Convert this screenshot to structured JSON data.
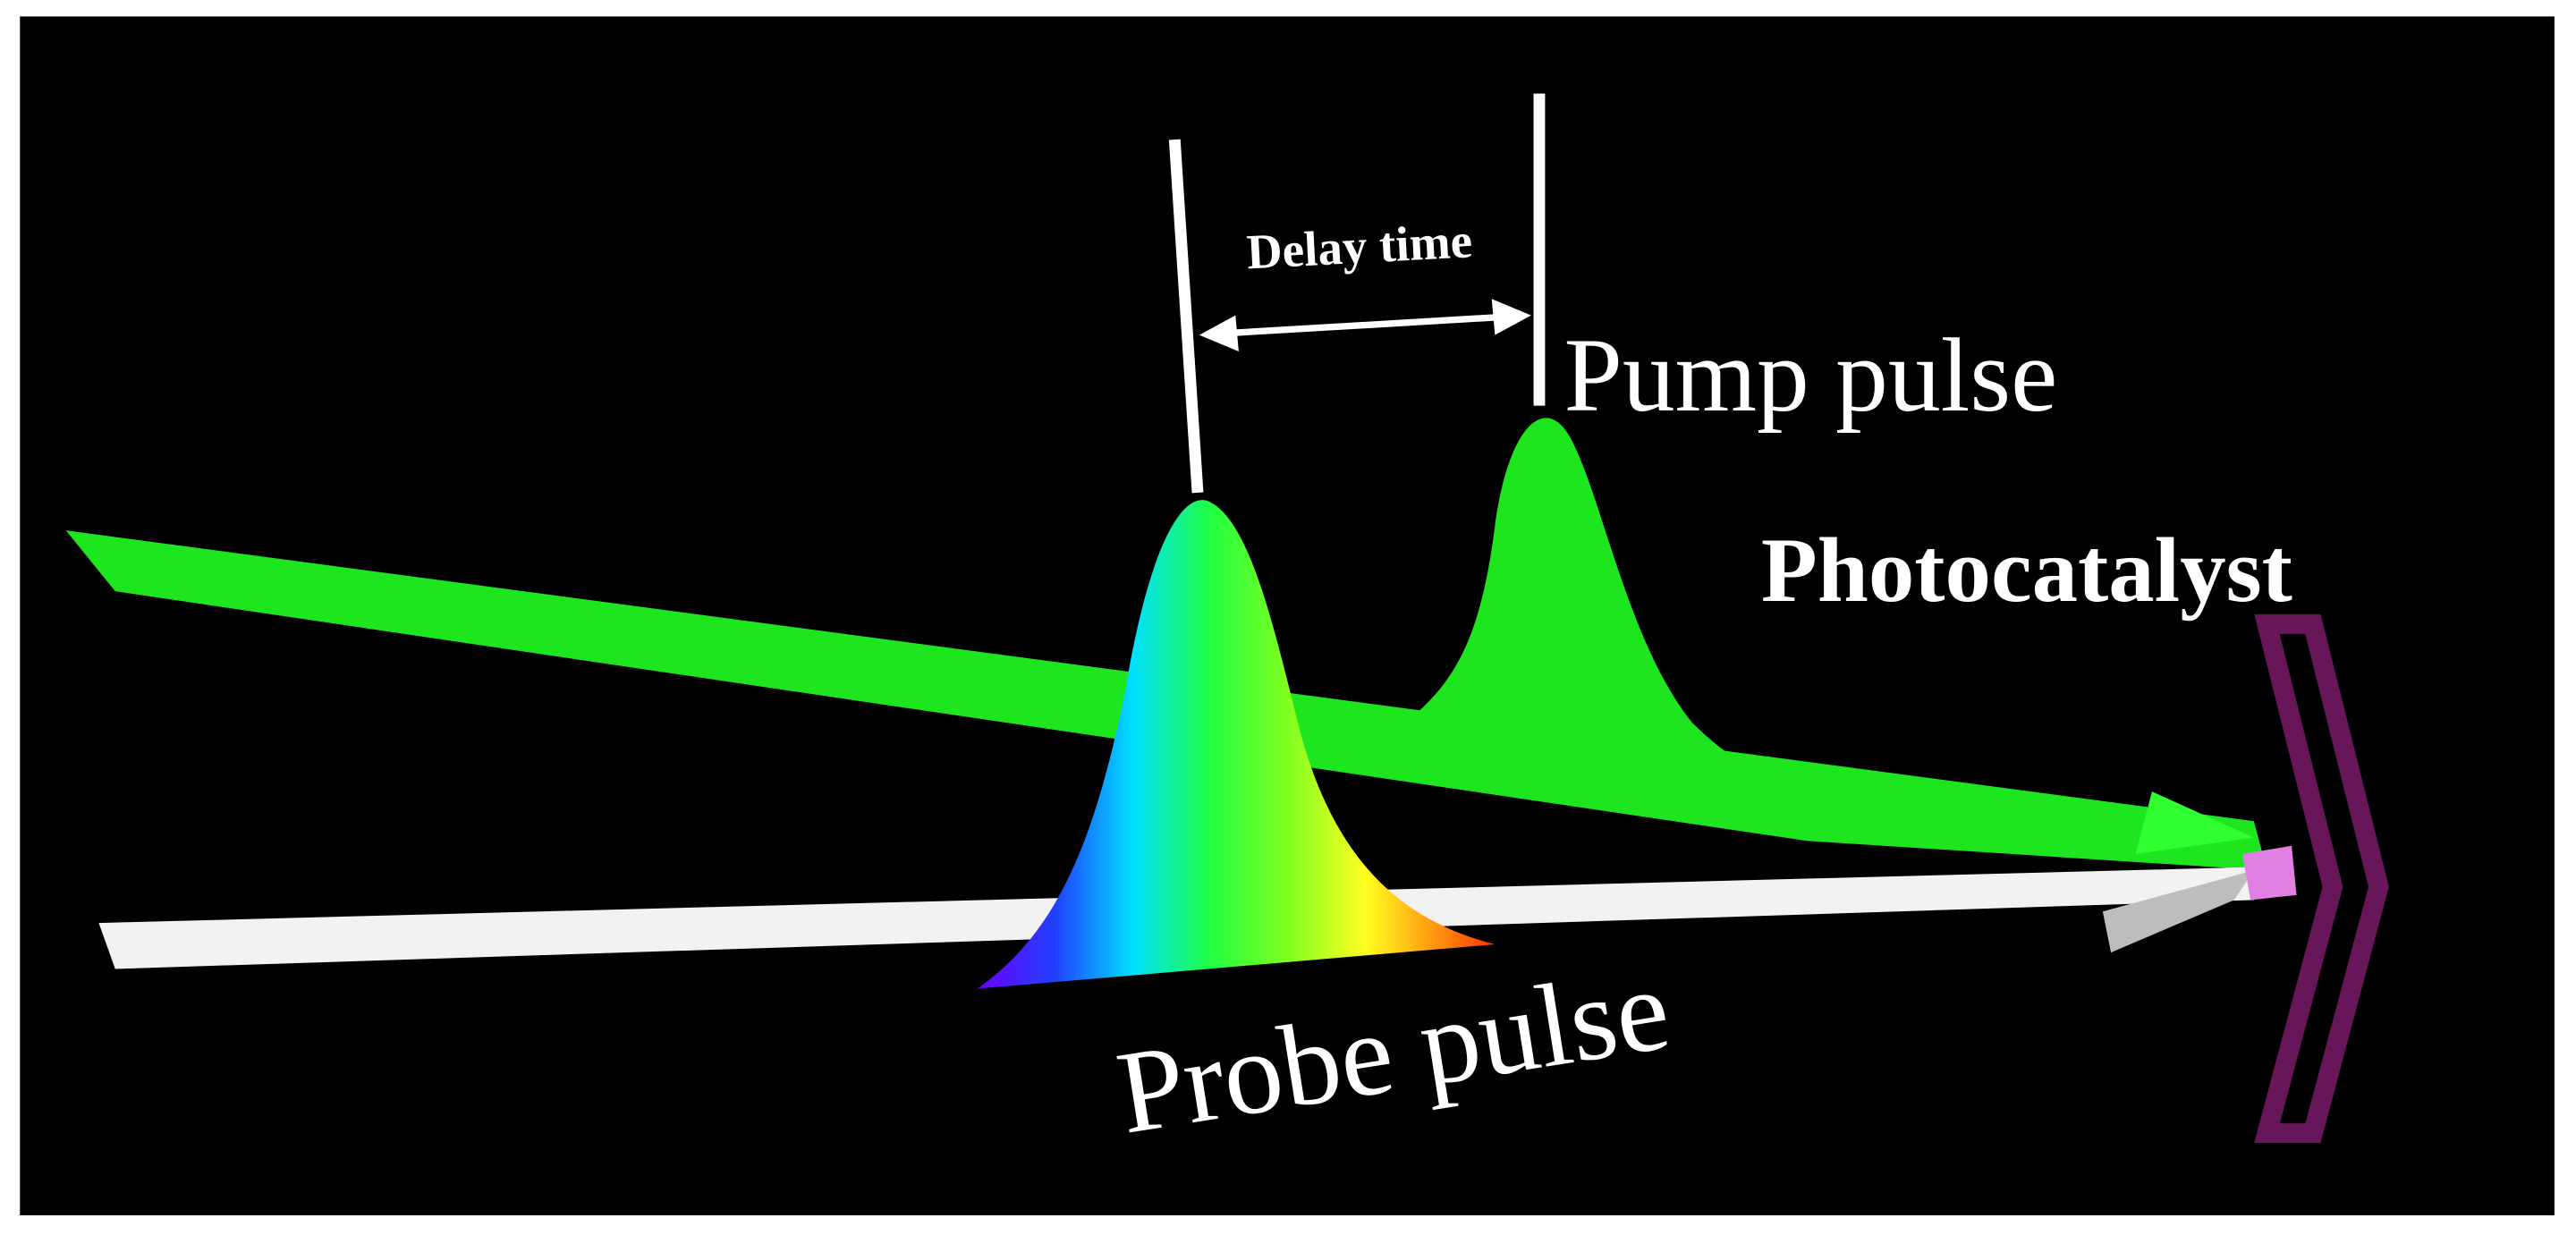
{
  "labels": {
    "delay_time": "Delay time",
    "pump_pulse": "Pump pulse",
    "photocatalyst": "Photocatalyst",
    "probe_pulse": "Probe pulse"
  }
}
